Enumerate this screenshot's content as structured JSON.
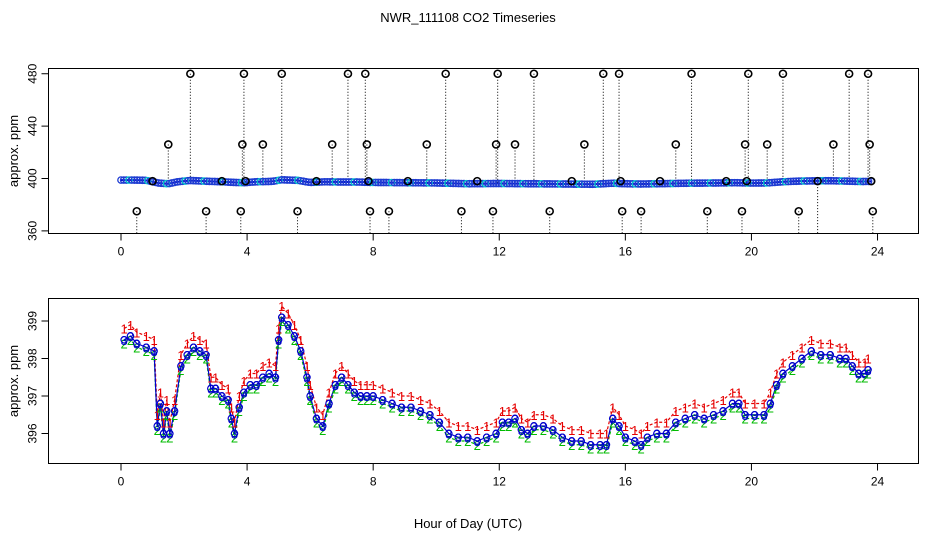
{
  "chart_data": {
    "title": "NWR_111108  CO2 Timeseries",
    "xlabel": "Hour of Day (UTC)",
    "panels": [
      {
        "id": "top",
        "type": "scatter",
        "ylabel": "approx. ppm",
        "xlim": [
          -2.3,
          25.3
        ],
        "ylim": [
          358,
          484
        ],
        "xticks": [
          0,
          4,
          8,
          12,
          16,
          20,
          24
        ],
        "yticks": [
          360,
          400,
          440,
          480
        ],
        "baseline": [
          [
            0.0,
            398.8
          ],
          [
            0.4,
            398.8
          ],
          [
            0.8,
            398.6
          ],
          [
            1.2,
            396.5
          ],
          [
            1.5,
            396.0
          ],
          [
            1.8,
            397.5
          ],
          [
            2.2,
            398.5
          ],
          [
            2.6,
            398.0
          ],
          [
            3.2,
            397.5
          ],
          [
            3.6,
            397.0
          ],
          [
            3.9,
            396.8
          ],
          [
            4.3,
            397.5
          ],
          [
            4.8,
            397.8
          ],
          [
            5.1,
            399.0
          ],
          [
            5.6,
            398.6
          ],
          [
            6.0,
            397.0
          ],
          [
            6.5,
            397.5
          ],
          [
            7.0,
            397.3
          ],
          [
            7.5,
            397.3
          ],
          [
            8.0,
            397.0
          ],
          [
            9.0,
            396.8
          ],
          [
            10.0,
            396.6
          ],
          [
            11.0,
            396.0
          ],
          [
            12.0,
            396.2
          ],
          [
            13.0,
            396.0
          ],
          [
            14.0,
            395.8
          ],
          [
            15.0,
            395.6
          ],
          [
            15.6,
            396.4
          ],
          [
            16.0,
            396.0
          ],
          [
            16.5,
            395.8
          ],
          [
            17.0,
            396.0
          ],
          [
            18.0,
            396.4
          ],
          [
            19.0,
            396.6
          ],
          [
            19.5,
            396.8
          ],
          [
            20.0,
            396.5
          ],
          [
            20.5,
            396.6
          ],
          [
            21.0,
            397.5
          ],
          [
            21.5,
            398.0
          ],
          [
            22.0,
            398.2
          ],
          [
            22.5,
            398.3
          ],
          [
            23.0,
            398.0
          ],
          [
            23.5,
            397.7
          ],
          [
            23.8,
            397.8
          ]
        ],
        "outliers": [
          [
            0.5,
            375
          ],
          [
            1.0,
            398
          ],
          [
            1.5,
            426
          ],
          [
            2.2,
            480
          ],
          [
            2.7,
            375
          ],
          [
            3.2,
            398
          ],
          [
            3.8,
            375
          ],
          [
            3.85,
            426
          ],
          [
            3.9,
            480
          ],
          [
            3.95,
            398
          ],
          [
            4.5,
            426
          ],
          [
            5.1,
            480
          ],
          [
            5.6,
            375
          ],
          [
            6.2,
            398
          ],
          [
            6.7,
            426
          ],
          [
            7.2,
            480
          ],
          [
            7.75,
            480
          ],
          [
            7.8,
            426
          ],
          [
            7.85,
            398
          ],
          [
            7.9,
            375
          ],
          [
            8.5,
            375
          ],
          [
            9.1,
            398
          ],
          [
            9.7,
            426
          ],
          [
            10.3,
            480
          ],
          [
            10.8,
            375
          ],
          [
            11.3,
            398
          ],
          [
            11.8,
            375
          ],
          [
            11.9,
            426
          ],
          [
            11.95,
            480
          ],
          [
            12.5,
            426
          ],
          [
            13.1,
            480
          ],
          [
            13.6,
            375
          ],
          [
            14.3,
            398
          ],
          [
            14.7,
            426
          ],
          [
            15.3,
            480
          ],
          [
            15.8,
            480
          ],
          [
            15.85,
            398
          ],
          [
            15.9,
            375
          ],
          [
            16.5,
            375
          ],
          [
            17.1,
            398
          ],
          [
            17.6,
            426
          ],
          [
            18.1,
            480
          ],
          [
            18.6,
            375
          ],
          [
            19.2,
            398
          ],
          [
            19.7,
            375
          ],
          [
            19.8,
            426
          ],
          [
            19.85,
            398
          ],
          [
            19.9,
            480
          ],
          [
            20.5,
            426
          ],
          [
            21.0,
            480
          ],
          [
            21.5,
            375
          ],
          [
            22.1,
            398
          ],
          [
            22.6,
            426
          ],
          [
            23.1,
            480
          ],
          [
            23.7,
            480
          ],
          [
            23.75,
            426
          ],
          [
            23.8,
            398
          ],
          [
            23.85,
            375
          ]
        ]
      },
      {
        "id": "bottom",
        "type": "line",
        "ylabel": "approx. ppm",
        "xlim": [
          -2.3,
          25.3
        ],
        "ylim": [
          395.2,
          399.6
        ],
        "xticks": [
          0,
          4,
          8,
          12,
          16,
          20,
          24
        ],
        "yticks": [
          396,
          397,
          398,
          399
        ],
        "series_labels": [
          "1",
          "2",
          "3"
        ],
        "series": [
          [
            0.1,
            398.5
          ],
          [
            0.3,
            398.6
          ],
          [
            0.5,
            398.4
          ],
          [
            0.8,
            398.3
          ],
          [
            1.05,
            398.2
          ],
          [
            1.15,
            396.2
          ],
          [
            1.25,
            396.8
          ],
          [
            1.35,
            396.0
          ],
          [
            1.45,
            396.6
          ],
          [
            1.55,
            396.0
          ],
          [
            1.7,
            396.6
          ],
          [
            1.9,
            397.8
          ],
          [
            2.1,
            398.1
          ],
          [
            2.3,
            398.3
          ],
          [
            2.5,
            398.2
          ],
          [
            2.7,
            398.1
          ],
          [
            2.85,
            397.2
          ],
          [
            3.0,
            397.2
          ],
          [
            3.2,
            397.0
          ],
          [
            3.4,
            396.9
          ],
          [
            3.5,
            396.4
          ],
          [
            3.6,
            396.0
          ],
          [
            3.75,
            396.7
          ],
          [
            3.9,
            397.1
          ],
          [
            4.1,
            397.3
          ],
          [
            4.3,
            397.3
          ],
          [
            4.5,
            397.5
          ],
          [
            4.7,
            397.6
          ],
          [
            4.9,
            397.5
          ],
          [
            5.0,
            398.5
          ],
          [
            5.1,
            399.1
          ],
          [
            5.3,
            398.9
          ],
          [
            5.5,
            398.6
          ],
          [
            5.7,
            398.2
          ],
          [
            5.9,
            397.5
          ],
          [
            6.0,
            397.0
          ],
          [
            6.2,
            396.4
          ],
          [
            6.4,
            396.2
          ],
          [
            6.6,
            396.8
          ],
          [
            6.8,
            397.3
          ],
          [
            7.0,
            397.5
          ],
          [
            7.2,
            397.3
          ],
          [
            7.4,
            397.1
          ],
          [
            7.6,
            397.0
          ],
          [
            7.8,
            397.0
          ],
          [
            8.0,
            397.0
          ],
          [
            8.3,
            396.9
          ],
          [
            8.6,
            396.8
          ],
          [
            8.9,
            396.7
          ],
          [
            9.2,
            396.7
          ],
          [
            9.5,
            396.6
          ],
          [
            9.8,
            396.5
          ],
          [
            10.1,
            396.3
          ],
          [
            10.4,
            396.0
          ],
          [
            10.7,
            395.9
          ],
          [
            11.0,
            395.9
          ],
          [
            11.3,
            395.8
          ],
          [
            11.6,
            395.9
          ],
          [
            11.9,
            396.0
          ],
          [
            12.1,
            396.3
          ],
          [
            12.3,
            396.3
          ],
          [
            12.5,
            396.4
          ],
          [
            12.7,
            396.1
          ],
          [
            12.9,
            396.0
          ],
          [
            13.1,
            396.2
          ],
          [
            13.4,
            396.2
          ],
          [
            13.7,
            396.1
          ],
          [
            14.0,
            395.9
          ],
          [
            14.3,
            395.8
          ],
          [
            14.6,
            395.8
          ],
          [
            14.9,
            395.7
          ],
          [
            15.2,
            395.7
          ],
          [
            15.4,
            395.7
          ],
          [
            15.6,
            396.4
          ],
          [
            15.8,
            396.2
          ],
          [
            16.0,
            395.9
          ],
          [
            16.3,
            395.8
          ],
          [
            16.5,
            395.7
          ],
          [
            16.7,
            395.9
          ],
          [
            17.0,
            396.0
          ],
          [
            17.3,
            396.0
          ],
          [
            17.6,
            396.3
          ],
          [
            17.9,
            396.4
          ],
          [
            18.2,
            396.5
          ],
          [
            18.5,
            396.4
          ],
          [
            18.8,
            396.5
          ],
          [
            19.1,
            396.6
          ],
          [
            19.4,
            396.8
          ],
          [
            19.6,
            396.8
          ],
          [
            19.8,
            396.5
          ],
          [
            20.1,
            396.5
          ],
          [
            20.4,
            396.5
          ],
          [
            20.6,
            396.8
          ],
          [
            20.8,
            397.3
          ],
          [
            21.0,
            397.6
          ],
          [
            21.3,
            397.8
          ],
          [
            21.6,
            398.0
          ],
          [
            21.9,
            398.2
          ],
          [
            22.2,
            398.1
          ],
          [
            22.5,
            398.1
          ],
          [
            22.8,
            398.0
          ],
          [
            23.0,
            398.0
          ],
          [
            23.2,
            397.8
          ],
          [
            23.4,
            397.6
          ],
          [
            23.6,
            397.6
          ],
          [
            23.7,
            397.7
          ]
        ]
      }
    ],
    "colors": {
      "frame": "#000000",
      "baseline": "#0000cc",
      "baseline_marker": "#1e3cd2",
      "baseline_marker_alt": "#00c8c8",
      "outlier": "#000000",
      "outlier_guide": "#000000",
      "series_1": "#e60000",
      "series_2": "#00bb00",
      "series_3": "#0000cc"
    }
  }
}
